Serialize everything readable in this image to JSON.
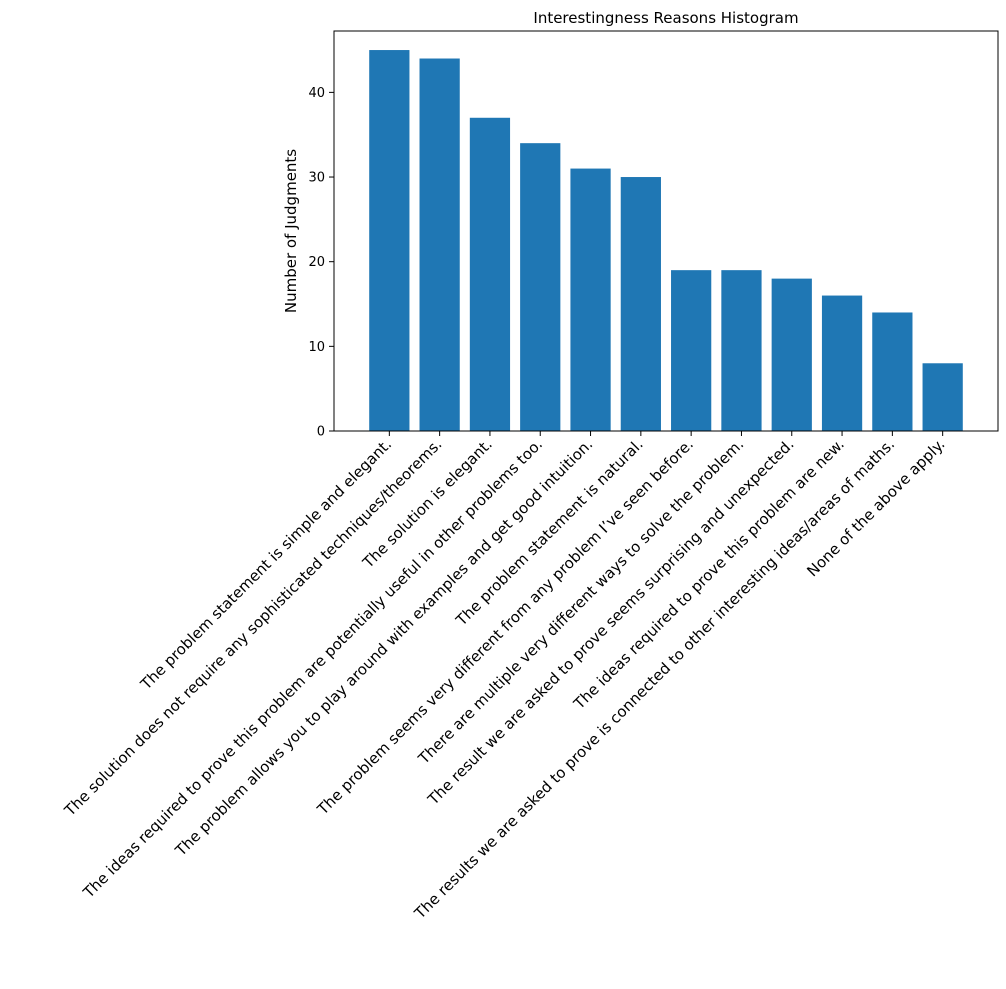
{
  "chart_data": {
    "type": "bar",
    "title": "Interestingness Reasons Histogram",
    "xlabel": "",
    "ylabel": "Number of Judgments",
    "ylim": [
      0,
      47.25
    ],
    "yticks": [
      0,
      10,
      20,
      30,
      40
    ],
    "bar_color": "#1f77b4",
    "categories": [
      "The problem statement is simple and elegant.",
      "The solution does not require any sophisticated techniques/theorems.",
      "The solution is elegant.",
      "The ideas required to prove this problem are potentially useful in other problems too.",
      "The problem allows you to play around with examples and get good intuition.",
      "The problem statement is natural.",
      "The problem seems very different from any problem I’ve seen before.",
      "There are multiple very different ways to solve the problem.",
      "The result we are asked to prove seems surprising and unexpected.",
      "The ideas required to prove this problem are new.",
      "The results we are asked to prove is connected to other interesting ideas/areas of maths.",
      "None of the above apply."
    ],
    "values": [
      45,
      44,
      37,
      34,
      31,
      30,
      19,
      19,
      18,
      16,
      14,
      8
    ],
    "grid": false,
    "legend": "none"
  }
}
